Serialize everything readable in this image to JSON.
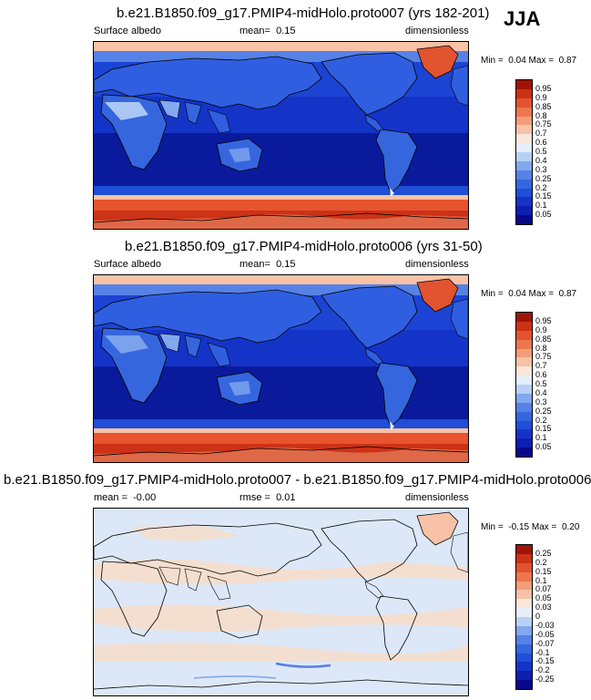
{
  "season": "JJA",
  "panels": [
    {
      "title": "b.e21.B1850.f09_g17.PMIP4-midHolo.proto007 (yrs 182-201)",
      "left_label": "Surface albedo",
      "stat_label": "mean=",
      "stat_value": "0.15",
      "units": "dimensionless",
      "min_label": "Min =",
      "min_value": "0.04",
      "max_label": "Max =",
      "max_value": "0.87",
      "colorbar_ticks": [
        "0.95",
        "0.9",
        "0.85",
        "0.8",
        "0.75",
        "0.7",
        "0.6",
        "0.5",
        "0.4",
        "0.3",
        "0.25",
        "0.2",
        "0.15",
        "0.1",
        "0.05"
      ]
    },
    {
      "title": "b.e21.B1850.f09_g17.PMIP4-midHolo.proto006 (yrs 31-50)",
      "left_label": "Surface albedo",
      "stat_label": "mean=",
      "stat_value": "0.15",
      "units": "dimensionless",
      "min_label": "Min =",
      "min_value": "0.04",
      "max_label": "Max =",
      "max_value": "0.87",
      "colorbar_ticks": [
        "0.95",
        "0.9",
        "0.85",
        "0.8",
        "0.75",
        "0.7",
        "0.6",
        "0.5",
        "0.4",
        "0.3",
        "0.25",
        "0.2",
        "0.15",
        "0.1",
        "0.05"
      ]
    },
    {
      "title": "b.e21.B1850.f09_g17.PMIP4-midHolo.proto007 - b.e21.B1850.f09_g17.PMIP4-midHolo.proto006",
      "left_label": "mean =",
      "left_value": "-0.00",
      "stat_label": "rmse =",
      "stat_value": "0.01",
      "units": "dimensionless",
      "min_label": "Min =",
      "min_value": "-0.15",
      "max_label": "Max =",
      "max_value": "0.20",
      "colorbar_ticks": [
        "0.25",
        "0.2",
        "0.15",
        "0.1",
        "0.07",
        "0.05",
        "0.03",
        "0",
        "-0.03",
        "-0.05",
        "-0.07",
        "-0.1",
        "-0.15",
        "-0.2",
        "-0.25"
      ]
    }
  ],
  "colors": {
    "scale": [
      "#08088a",
      "#0c1fb0",
      "#1434c8",
      "#1f4ed8",
      "#3566de",
      "#5682e6",
      "#82a8ee",
      "#b9d0f6",
      "#e6eefb",
      "#fbe6da",
      "#f7c2a6",
      "#f29e78",
      "#ec7650",
      "#e2532f",
      "#cc3216",
      "#a01408"
    ],
    "ocean_deep": "#0a1a9c",
    "ocean_mid": "#1c44d4",
    "ocean_light": "#2f5ee0",
    "sea_ice": "#e8542e",
    "diff_bg": "#dce8f8",
    "diff_warm": "#f8dcc8"
  }
}
